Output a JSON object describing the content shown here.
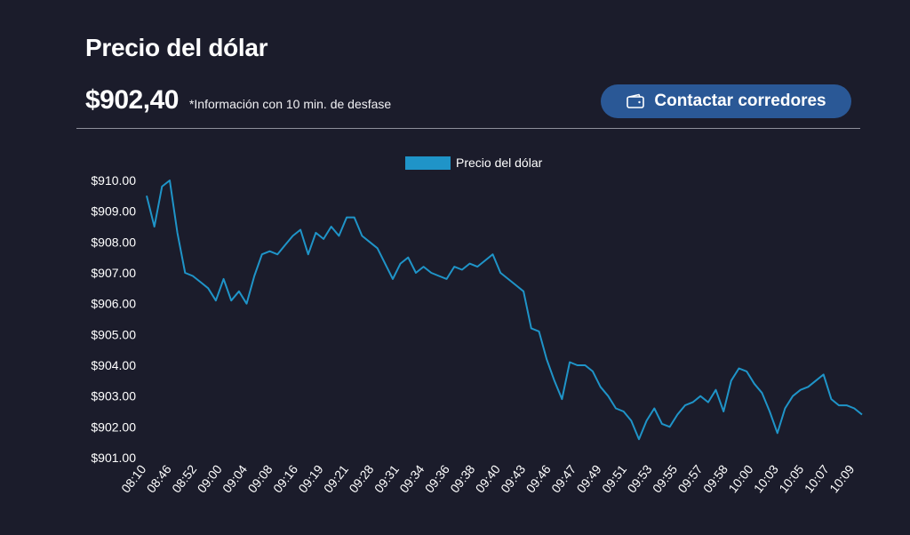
{
  "header": {
    "title": "Precio del dólar",
    "price": "$902,40",
    "disclaimer": "*Información con 10 min. de desfase",
    "contact_label": "Contactar corredores",
    "contact_icon": "wallet-icon"
  },
  "colors": {
    "background": "#1b1c2b",
    "line": "#1f94c8",
    "button": "#2a5896"
  },
  "chart_data": {
    "type": "line",
    "legend": "top-center",
    "grid": false,
    "ylim": [
      901,
      910
    ],
    "yticks": [
      "$901.00",
      "$902.00",
      "$903.00",
      "$904.00",
      "$905.00",
      "$906.00",
      "$907.00",
      "$908.00",
      "$909.00",
      "$910.00"
    ],
    "xticks": [
      "08:10",
      "08:46",
      "08:52",
      "09:00",
      "09:04",
      "09:08",
      "09:16",
      "09:19",
      "09:21",
      "09:28",
      "09:31",
      "09:34",
      "09:36",
      "09:38",
      "09:40",
      "09:43",
      "09:46",
      "09:47",
      "09:49",
      "09:51",
      "09:53",
      "09:55",
      "09:57",
      "09:58",
      "10:00",
      "10:03",
      "10:05",
      "10:07",
      "10:09"
    ],
    "series": [
      {
        "name": "Precio del dólar",
        "values": [
          909.5,
          908.5,
          909.8,
          910.0,
          908.3,
          907.0,
          906.9,
          906.7,
          906.5,
          906.1,
          906.8,
          906.1,
          906.4,
          906.0,
          906.9,
          907.6,
          907.7,
          907.6,
          907.9,
          908.2,
          908.4,
          907.6,
          908.3,
          908.1,
          908.5,
          908.2,
          908.8,
          908.8,
          908.2,
          908.0,
          907.8,
          907.3,
          906.8,
          907.3,
          907.5,
          907.0,
          907.2,
          907.0,
          906.9,
          906.8,
          907.2,
          907.1,
          907.3,
          907.2,
          907.4,
          907.6,
          907.0,
          906.8,
          906.6,
          906.4,
          905.2,
          905.1,
          904.2,
          903.5,
          902.9,
          904.1,
          904.0,
          904.0,
          903.8,
          903.3,
          903.0,
          902.6,
          902.5,
          902.2,
          901.6,
          902.2,
          902.6,
          902.1,
          902.0,
          902.4,
          902.7,
          902.8,
          903.0,
          902.8,
          903.2,
          902.5,
          903.5,
          903.9,
          903.8,
          903.4,
          903.1,
          902.5,
          901.8,
          902.6,
          903.0,
          903.2,
          903.3,
          903.5,
          903.7,
          902.9,
          902.7,
          902.7,
          902.6,
          902.4
        ]
      }
    ]
  }
}
